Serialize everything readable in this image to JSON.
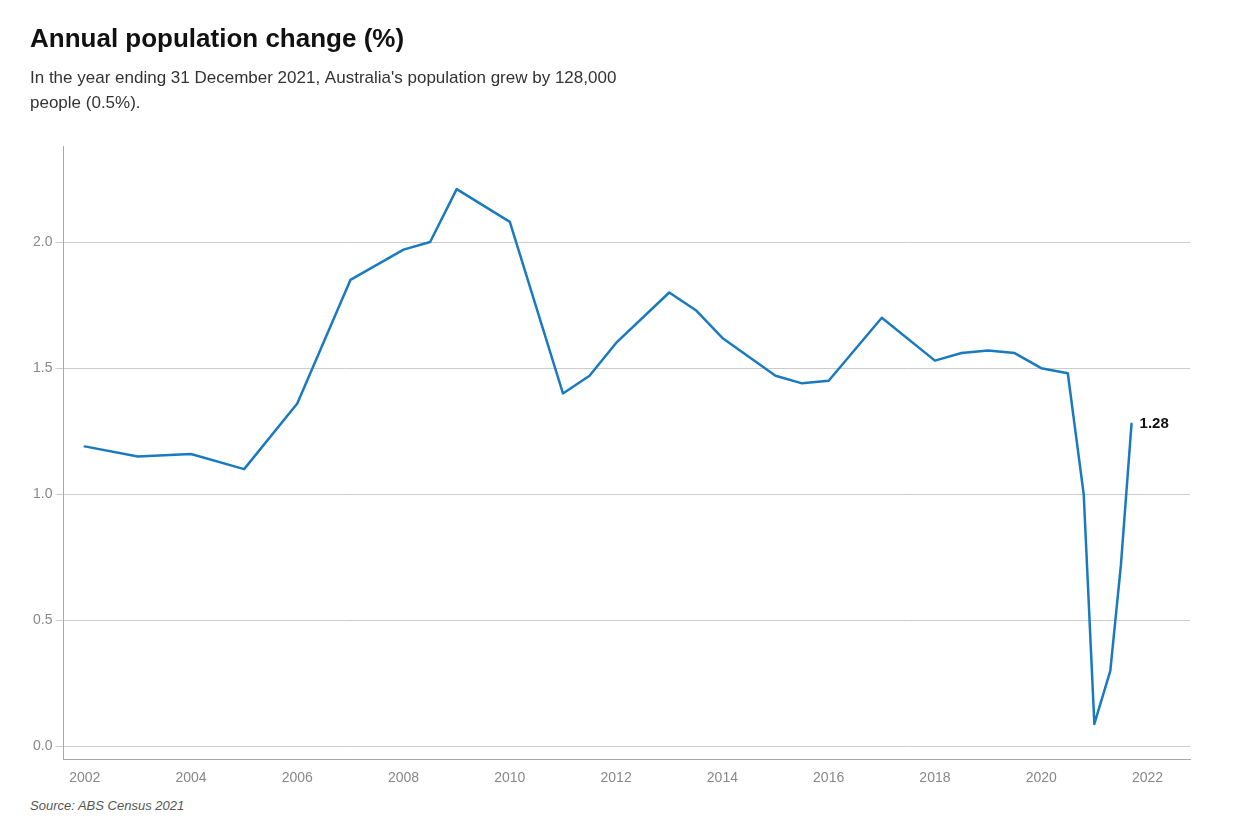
{
  "chart_data": {
    "type": "line",
    "title": "Annual population change (%)",
    "subtitle": "In the year ending 31 December 2021, Australia's population grew by 128,000\npeople (0.5%).",
    "source": "Source: ABS Census 2021",
    "x": [
      2002,
      2003,
      2004,
      2005,
      2006,
      2007,
      2008,
      2008.5,
      2009,
      2010,
      2011,
      2011.5,
      2012,
      2013,
      2013.5,
      2014,
      2015,
      2015.5,
      2016,
      2017,
      2018,
      2018.5,
      2019,
      2019.5,
      2020,
      2020.5,
      2020.8,
      2021.0,
      2021.3,
      2021.5,
      2021.7
    ],
    "values": [
      1.19,
      1.15,
      1.16,
      1.1,
      1.36,
      1.85,
      1.97,
      2.0,
      2.21,
      2.08,
      1.4,
      1.47,
      1.6,
      1.8,
      1.73,
      1.62,
      1.47,
      1.44,
      1.45,
      1.7,
      1.53,
      1.56,
      1.57,
      1.56,
      1.5,
      1.48,
      1.0,
      0.09,
      0.3,
      0.72,
      1.28
    ],
    "color": "#1a7abf",
    "xlim": [
      2001.6,
      2022.8
    ],
    "xticks": [
      2002,
      2004,
      2006,
      2008,
      2010,
      2012,
      2014,
      2016,
      2018,
      2020,
      2022
    ],
    "ylim": [
      -0.05,
      2.38
    ],
    "yticks": [
      {
        "value": 0,
        "label": "0.0"
      },
      0.5,
      {
        "value": 1,
        "label": "1.0"
      },
      1.5,
      {
        "value": 2,
        "label": "2.0"
      }
    ],
    "grid": "y",
    "annotations": [
      {
        "text": "1.28",
        "x": 2021.7,
        "y": 1.28
      }
    ]
  }
}
